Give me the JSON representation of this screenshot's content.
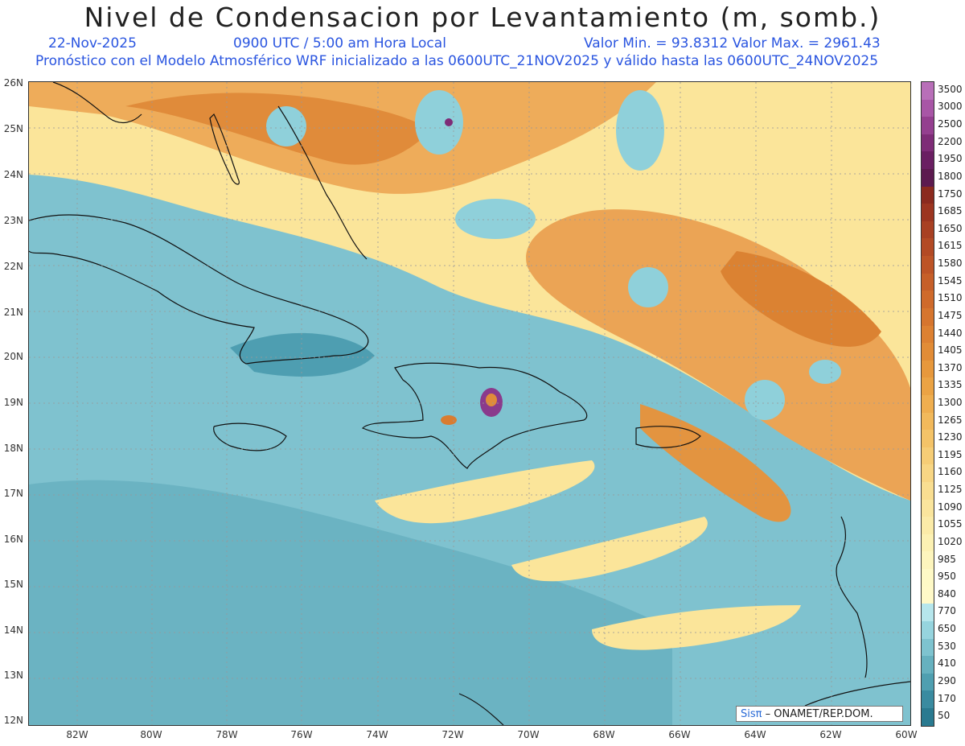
{
  "header": {
    "title": "Nivel de Condensacion por Levantamiento (m, somb.)",
    "date": "22-Nov-2025",
    "time": "0900 UTC / 5:00 am Hora Local",
    "minmax": "Valor Min. = 93.8312  Valor Max. = 2961.43",
    "model_info": "Pronóstico con el Modelo Atmosférico WRF inicializado a las 0600UTC_21NOV2025 y válido hasta las  0600UTC_24NOV2025"
  },
  "axes": {
    "latitudes": [
      "26N",
      "25N",
      "24N",
      "23N",
      "22N",
      "21N",
      "20N",
      "19N",
      "18N",
      "17N",
      "16N",
      "15N",
      "14N",
      "13N",
      "12N"
    ],
    "longitudes": [
      "82W",
      "80W",
      "78W",
      "76W",
      "74W",
      "72W",
      "70W",
      "68W",
      "66W",
      "64W",
      "62W",
      "60W"
    ]
  },
  "colorbar": {
    "labels": [
      "3500",
      "3000",
      "2500",
      "2200",
      "1950",
      "1800",
      "1750",
      "1685",
      "1650",
      "1615",
      "1580",
      "1545",
      "1510",
      "1475",
      "1440",
      "1405",
      "1370",
      "1335",
      "1300",
      "1265",
      "1230",
      "1195",
      "1160",
      "1125",
      "1090",
      "1055",
      "1020",
      "985",
      "950",
      "840",
      "770",
      "650",
      "530",
      "410",
      "290",
      "170",
      "50"
    ],
    "colors": [
      "#b86fb8",
      "#a856a6",
      "#943f8f",
      "#7e2c77",
      "#6a1f62",
      "#5c1a4f",
      "#8b2a1e",
      "#9c3520",
      "#a84023",
      "#b34a25",
      "#bd5427",
      "#c65f29",
      "#cf6a2b",
      "#d6752e",
      "#dd8132",
      "#e28c36",
      "#e7983c",
      "#eba344",
      "#efae4f",
      "#f2b95b",
      "#f4c368",
      "#f6cd76",
      "#f8d684",
      "#f9de91",
      "#fae59d",
      "#fbeba8",
      "#fcf1b3",
      "#fdf5bd",
      "#fef9c6",
      "#fff9c8",
      "#b6e6ec",
      "#96d4de",
      "#7ec3cf",
      "#66b1bf",
      "#4f9fb0",
      "#3a8ba0",
      "#2a7a90"
    ]
  },
  "branding": {
    "sis": "Sisπ",
    "rest": "– ONAMET/REP.DOM."
  },
  "colors": {
    "ocean_low": "#6fb9c6",
    "ocean_mid": "#8fd0da",
    "pale": "#fff3b0",
    "warm": "#f0b060",
    "hot": "#e08a35",
    "coast": "#111111"
  }
}
